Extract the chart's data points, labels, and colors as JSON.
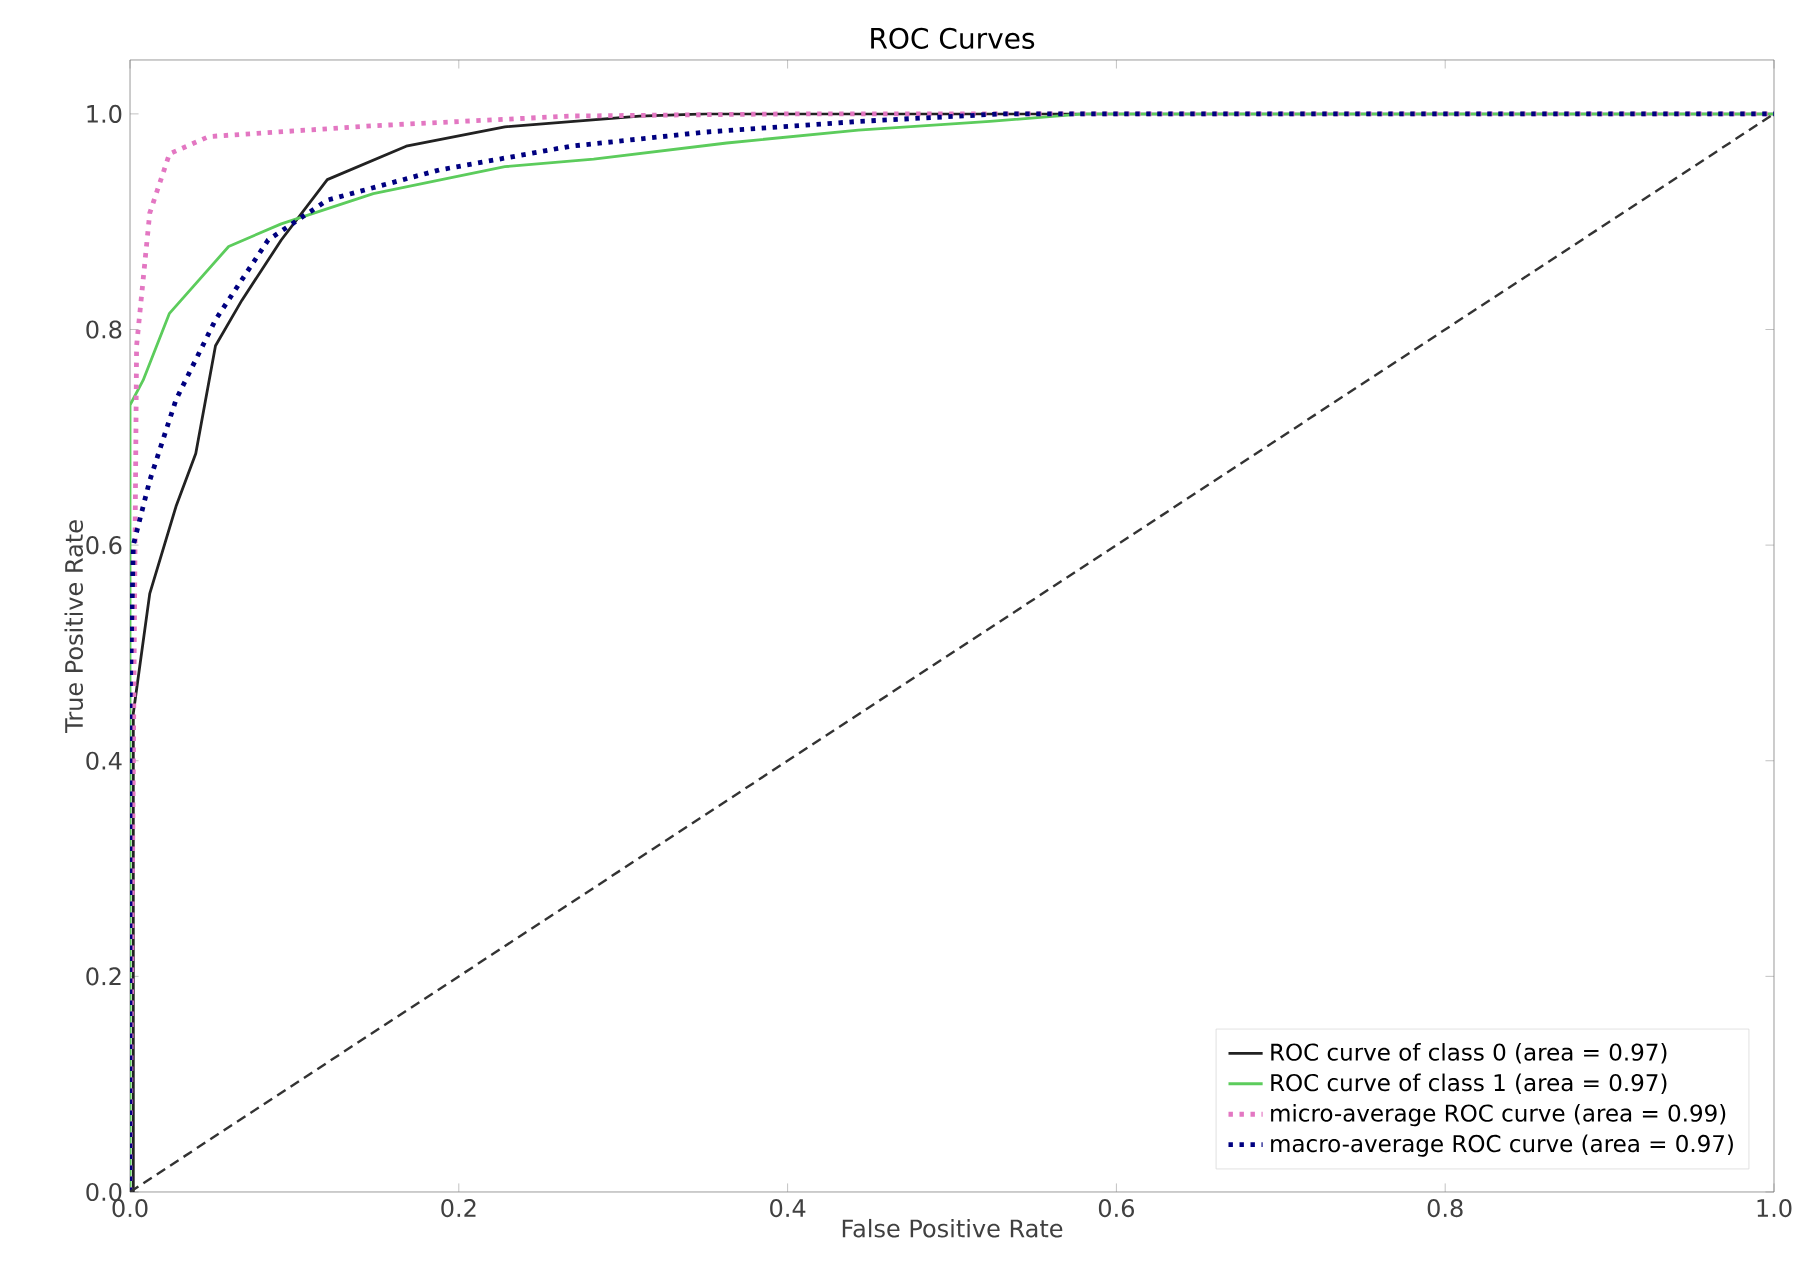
{
  "chart_data": {
    "type": "line",
    "title": "ROC Curves",
    "xlabel": "False Positive Rate",
    "ylabel": "True Positive Rate",
    "xlim": [
      0,
      1
    ],
    "ylim": [
      0,
      1.05
    ],
    "xticks": [
      {
        "value": 0,
        "label": "0.0"
      },
      0.2,
      0.4,
      0.6,
      0.8,
      {
        "value": 1,
        "label": "1.0"
      }
    ],
    "yticks": [
      {
        "value": 0,
        "label": "0.0"
      },
      0.2,
      0.4,
      0.6,
      0.8,
      {
        "value": 1,
        "label": "1.0"
      }
    ],
    "legend": "bottom right",
    "series": [
      {
        "name": "ROC curve of class 0 (area = 0.97)",
        "color": "#222222",
        "line_style": "solid",
        "x": [
          0,
          0.002,
          0.002,
          0.012,
          0.028,
          0.04,
          0.052,
          0.068,
          0.092,
          0.12,
          0.168,
          0.228,
          0.31,
          0.35,
          1
        ],
        "values": [
          0,
          0,
          0.444,
          0.555,
          0.636,
          0.685,
          0.785,
          0.827,
          0.883,
          0.939,
          0.97,
          0.988,
          0.998,
          1,
          1
        ]
      },
      {
        "name": "ROC curve of class 1 (area = 0.97)",
        "color": "#5ccc5c",
        "line_style": "solid",
        "x": [
          0,
          0,
          0.008,
          0.024,
          0.06,
          0.092,
          0.148,
          0.228,
          0.282,
          0.363,
          0.443,
          0.523,
          0.58,
          1
        ],
        "values": [
          0,
          0.73,
          0.753,
          0.815,
          0.877,
          0.898,
          0.926,
          0.951,
          0.958,
          0.973,
          0.985,
          0.993,
          1,
          1
        ]
      },
      {
        "name": "micro-average ROC curve (area = 0.99)",
        "color": "#e377c2",
        "line_style": "dotted",
        "x": [
          0,
          0.004,
          0.012,
          0.024,
          0.048,
          0.148,
          0.268,
          0.4,
          1
        ],
        "values": [
          0,
          0.785,
          0.908,
          0.963,
          0.979,
          0.989,
          0.998,
          1,
          1
        ]
      },
      {
        "name": "macro-average ROC curve (area = 0.97)",
        "color": "#000080",
        "line_style": "dotted",
        "x": [
          0,
          0,
          0.002,
          0.012,
          0.028,
          0.052,
          0.084,
          0.12,
          0.188,
          0.268,
          0.349,
          0.443,
          0.53,
          1
        ],
        "values": [
          0,
          0.45,
          0.6,
          0.66,
          0.735,
          0.809,
          0.883,
          0.92,
          0.948,
          0.97,
          0.983,
          0.993,
          1,
          1
        ]
      },
      {
        "color": "#333333",
        "line_style": "dashed",
        "x": [
          0,
          1
        ],
        "values": [
          0,
          1
        ]
      }
    ]
  }
}
